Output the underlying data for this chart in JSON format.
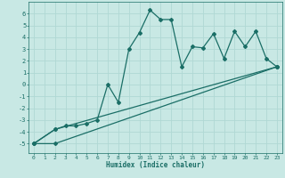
{
  "xlabel": "Humidex (Indice chaleur)",
  "bg_color": "#c8e8e4",
  "grid_color": "#b0d8d4",
  "line_color": "#1a6e66",
  "xlim": [
    -0.5,
    23.5
  ],
  "ylim": [
    -5.8,
    7.0
  ],
  "xticks": [
    0,
    1,
    2,
    3,
    4,
    5,
    6,
    7,
    8,
    9,
    10,
    11,
    12,
    13,
    14,
    15,
    16,
    17,
    18,
    19,
    20,
    21,
    22,
    23
  ],
  "yticks": [
    -5,
    -4,
    -3,
    -2,
    -1,
    0,
    1,
    2,
    3,
    4,
    5,
    6
  ],
  "series1_x": [
    0,
    2,
    3,
    4,
    5,
    6,
    7,
    8,
    9,
    10,
    11,
    12,
    13,
    14,
    15,
    16,
    17,
    18,
    19,
    20,
    21,
    22,
    23
  ],
  "series1_y": [
    -5.0,
    -3.8,
    -3.5,
    -3.5,
    -3.3,
    -3.0,
    0.0,
    -1.5,
    3.0,
    4.4,
    6.3,
    5.5,
    5.5,
    1.5,
    3.2,
    3.1,
    4.3,
    2.2,
    4.5,
    3.2,
    4.5,
    2.2,
    1.5
  ],
  "series2_x": [
    0,
    2,
    23
  ],
  "series2_y": [
    -5.0,
    -5.0,
    1.5
  ],
  "series3_x": [
    0,
    2,
    23
  ],
  "series3_y": [
    -5.0,
    -3.8,
    1.5
  ],
  "marker": "D",
  "marker_size": 2.0,
  "line_width": 0.9
}
